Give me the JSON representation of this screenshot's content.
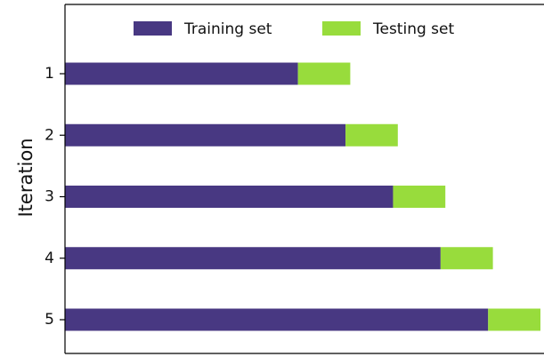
{
  "chart_data": {
    "type": "bar",
    "orientation": "horizontal",
    "stacked": true,
    "y_label": "Iteration",
    "categories": [
      "1",
      "2",
      "3",
      "4",
      "5"
    ],
    "series": [
      {
        "name": "Training set",
        "color": "#483882",
        "values": [
          4.9,
          5.9,
          6.9,
          7.9,
          8.9
        ]
      },
      {
        "name": "Testing set",
        "color": "#98dc3c",
        "values": [
          1.1,
          1.1,
          1.1,
          1.1,
          1.1
        ]
      }
    ],
    "xlim": [
      0,
      10
    ],
    "legend": "top"
  }
}
